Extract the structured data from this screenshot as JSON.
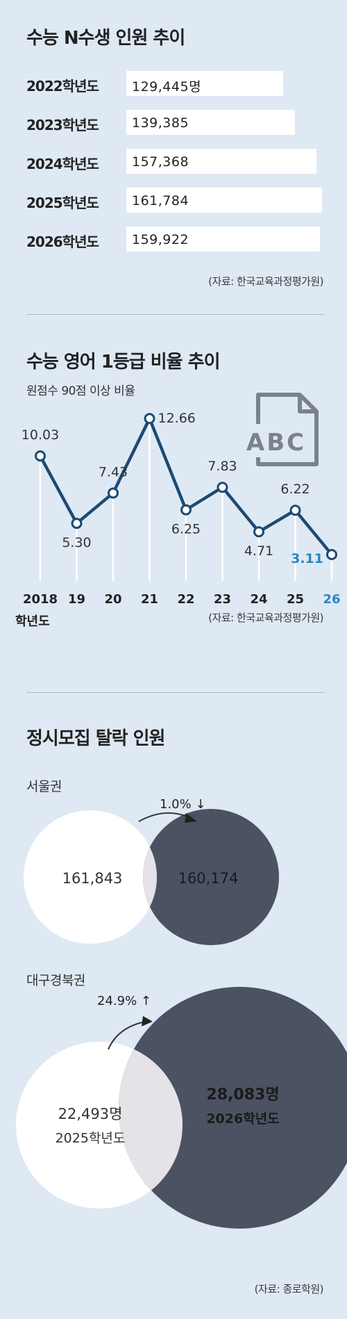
{
  "chart_data": [
    {
      "type": "bar",
      "title": "수능 N수생 인원 추이",
      "categories": [
        "2022학년도",
        "2023학년도",
        "2024학년도",
        "2025학년도",
        "2026학년도"
      ],
      "values": [
        129445,
        139385,
        157368,
        161784,
        159922
      ],
      "labels": [
        "129,445명",
        "139,385",
        "157,368",
        "161,784",
        "159,922"
      ],
      "orientation": "horizontal",
      "source": "(자료: 한국교육과정평가원)",
      "colors": {
        "bar": "#ffffff"
      }
    },
    {
      "type": "line",
      "title": "수능 영어 1등급 비율 추이",
      "subtitle": "원점수 90점 이상 비율",
      "categories": [
        "2018",
        "19",
        "20",
        "21",
        "22",
        "23",
        "24",
        "25",
        "26"
      ],
      "x_suffix": "학년도",
      "values": [
        10.03,
        5.3,
        7.43,
        12.66,
        6.25,
        7.83,
        4.71,
        6.22,
        3.11
      ],
      "labels": [
        "10.03",
        "5.30",
        "7.43",
        "12.66",
        "6.25",
        "7.83",
        "4.71",
        "6.22",
        "3.11"
      ],
      "icon": "abc-document-icon",
      "icon_text": "ABC",
      "source": "(자료: 한국교육과정평가원)",
      "colors": {
        "line": "#1c4a73",
        "highlight": "#2a86c4"
      }
    },
    {
      "type": "bubble",
      "title": "정시모집 탈락 인원",
      "groups": [
        {
          "name": "서울권",
          "values": [
            161843,
            160174
          ],
          "labels": [
            "161,843",
            "160,174"
          ],
          "change": "1.0% ↓",
          "change_icon": "curved-arrow-icon"
        },
        {
          "name": "대구경북권",
          "values": [
            22493,
            28083
          ],
          "labels": [
            "22,493명",
            "28,083명"
          ],
          "years": [
            "2025학년도",
            "2026학년도"
          ],
          "change": "24.9% ↑",
          "change_icon": "curved-arrow-icon"
        }
      ],
      "source": "(자료: 종로학원)",
      "colors": {
        "previous": "#ffffff",
        "current": "#4b5363",
        "overlap": "#e5e2e8"
      }
    }
  ]
}
